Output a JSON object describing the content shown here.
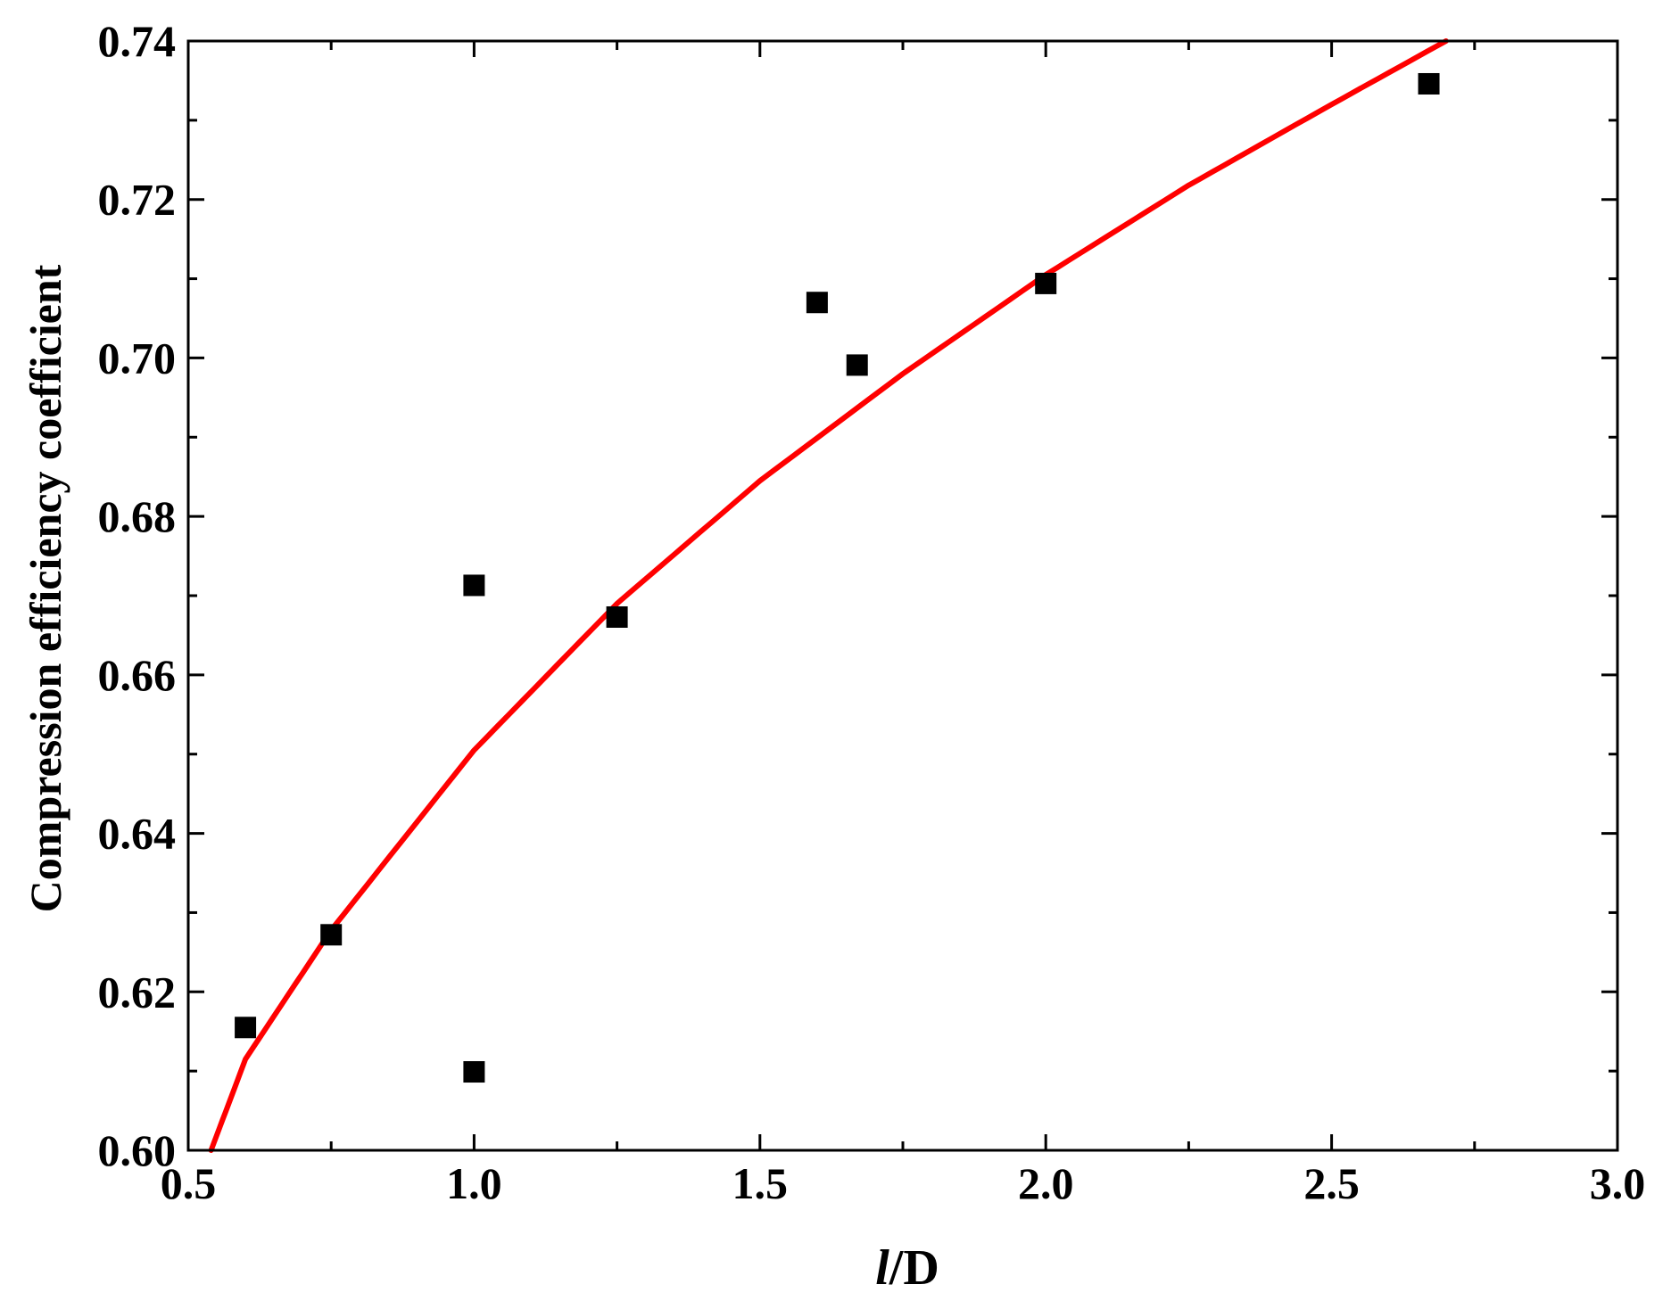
{
  "chart_data": {
    "type": "scatter",
    "xlabel_parts": [
      "l",
      "/D"
    ],
    "ylabel": "Compression efficiency coefficient",
    "xlim": [
      0.5,
      3.0
    ],
    "ylim": [
      0.6,
      0.74
    ],
    "x_ticks": [
      "0.5",
      "1.0",
      "1.5",
      "2.0",
      "2.5",
      "3.0"
    ],
    "y_ticks": [
      "0.60",
      "0.62",
      "0.64",
      "0.66",
      "0.68",
      "0.70",
      "0.72",
      "0.74"
    ],
    "grid": false,
    "series": [
      {
        "kind": "points",
        "marker": "square",
        "color": "#000000",
        "x": [
          0.6,
          0.75,
          1.0,
          1.0,
          1.25,
          1.6,
          1.67,
          2.0,
          2.67
        ],
        "y": [
          0.6155,
          0.6272,
          0.6713,
          0.6099,
          0.6673,
          0.707,
          0.6991,
          0.7094,
          0.7346
        ]
      },
      {
        "kind": "fit",
        "color": "#ff0000",
        "x": [
          0.54,
          0.6,
          0.75,
          1.0,
          1.25,
          1.5,
          1.75,
          2.0,
          2.25,
          2.5,
          2.7
        ],
        "y": [
          0.6,
          0.6115,
          0.6278,
          0.6505,
          0.669,
          0.6845,
          0.698,
          0.7105,
          0.7218,
          0.732,
          0.74
        ]
      }
    ]
  }
}
